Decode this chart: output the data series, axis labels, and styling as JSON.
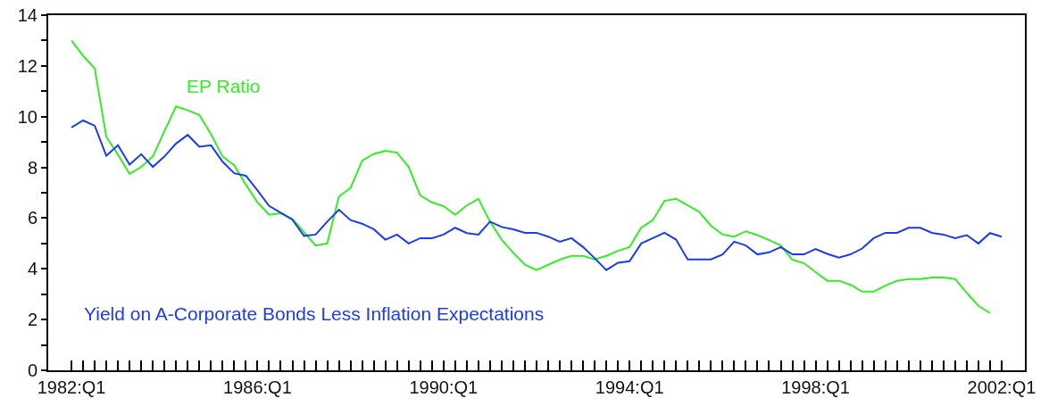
{
  "chart_data": {
    "type": "line",
    "categories": [
      "1982:Q1",
      null,
      null,
      null,
      null,
      null,
      null,
      null,
      null,
      null,
      null,
      null,
      null,
      null,
      null,
      null,
      "1986:Q1",
      null,
      null,
      null,
      null,
      null,
      null,
      null,
      null,
      null,
      null,
      null,
      null,
      null,
      null,
      null,
      "1990:Q1",
      null,
      null,
      null,
      null,
      null,
      null,
      null,
      null,
      null,
      null,
      null,
      null,
      null,
      null,
      null,
      "1994:Q1",
      null,
      null,
      null,
      null,
      null,
      null,
      null,
      null,
      null,
      null,
      null,
      null,
      null,
      null,
      null,
      "1998:Q1",
      null,
      null,
      null,
      null,
      null,
      null,
      null,
      null,
      null,
      null,
      null,
      null,
      null,
      null,
      null,
      "2002:Q1"
    ],
    "series": [
      {
        "name": "EP Ratio",
        "color": "#33ee22",
        "values": [
          13.0,
          12.4,
          11.9,
          9.2,
          8.5,
          7.74,
          8.02,
          8.43,
          9.43,
          10.4,
          10.25,
          10.07,
          9.3,
          8.43,
          8.08,
          7.32,
          6.62,
          6.13,
          6.19,
          5.97,
          5.45,
          4.92,
          5.0,
          6.85,
          7.18,
          8.26,
          8.53,
          8.65,
          8.58,
          8.02,
          6.89,
          6.62,
          6.47,
          6.13,
          6.5,
          6.76,
          5.86,
          5.15,
          4.63,
          4.16,
          3.95,
          4.16,
          4.36,
          4.51,
          4.51,
          4.37,
          4.51,
          4.71,
          4.86,
          5.62,
          5.92,
          6.68,
          6.76,
          6.5,
          6.24,
          5.7,
          5.35,
          5.27,
          5.48,
          5.33,
          5.13,
          4.92,
          4.36,
          4.22,
          3.87,
          3.53,
          3.53,
          3.37,
          3.1,
          3.1,
          3.34,
          3.53,
          3.6,
          3.6,
          3.66,
          3.66,
          3.6,
          3.05,
          2.54,
          2.26,
          null
        ]
      },
      {
        "name": "Yield on A-Corporate Bonds Less Inflation Expectations",
        "color": "#1a3cf0",
        "values": [
          9.57,
          9.85,
          9.64,
          8.46,
          8.87,
          8.11,
          8.52,
          8.02,
          8.43,
          8.94,
          9.28,
          8.81,
          8.87,
          8.22,
          7.77,
          7.67,
          7.09,
          6.48,
          6.21,
          5.94,
          5.3,
          5.35,
          5.86,
          6.33,
          5.92,
          5.78,
          5.56,
          5.15,
          5.35,
          5.0,
          5.21,
          5.21,
          5.35,
          5.62,
          5.41,
          5.35,
          5.86,
          5.65,
          5.56,
          5.42,
          5.42,
          5.27,
          5.07,
          5.21,
          4.86,
          4.42,
          3.95,
          4.24,
          4.3,
          5.0,
          5.21,
          5.42,
          5.15,
          4.37,
          4.37,
          4.37,
          4.57,
          5.07,
          4.92,
          4.57,
          4.65,
          4.86,
          4.57,
          4.57,
          4.78,
          4.59,
          4.44,
          4.57,
          4.8,
          5.21,
          5.42,
          5.42,
          5.62,
          5.62,
          5.42,
          5.35,
          5.21,
          5.33,
          5.0,
          5.41,
          5.27
        ]
      }
    ],
    "ylim": [
      0,
      14
    ],
    "yticks": [
      0,
      2,
      4,
      6,
      8,
      10,
      12,
      14
    ],
    "grid": false,
    "legend": false,
    "marker": "none",
    "line_style": "solid"
  }
}
